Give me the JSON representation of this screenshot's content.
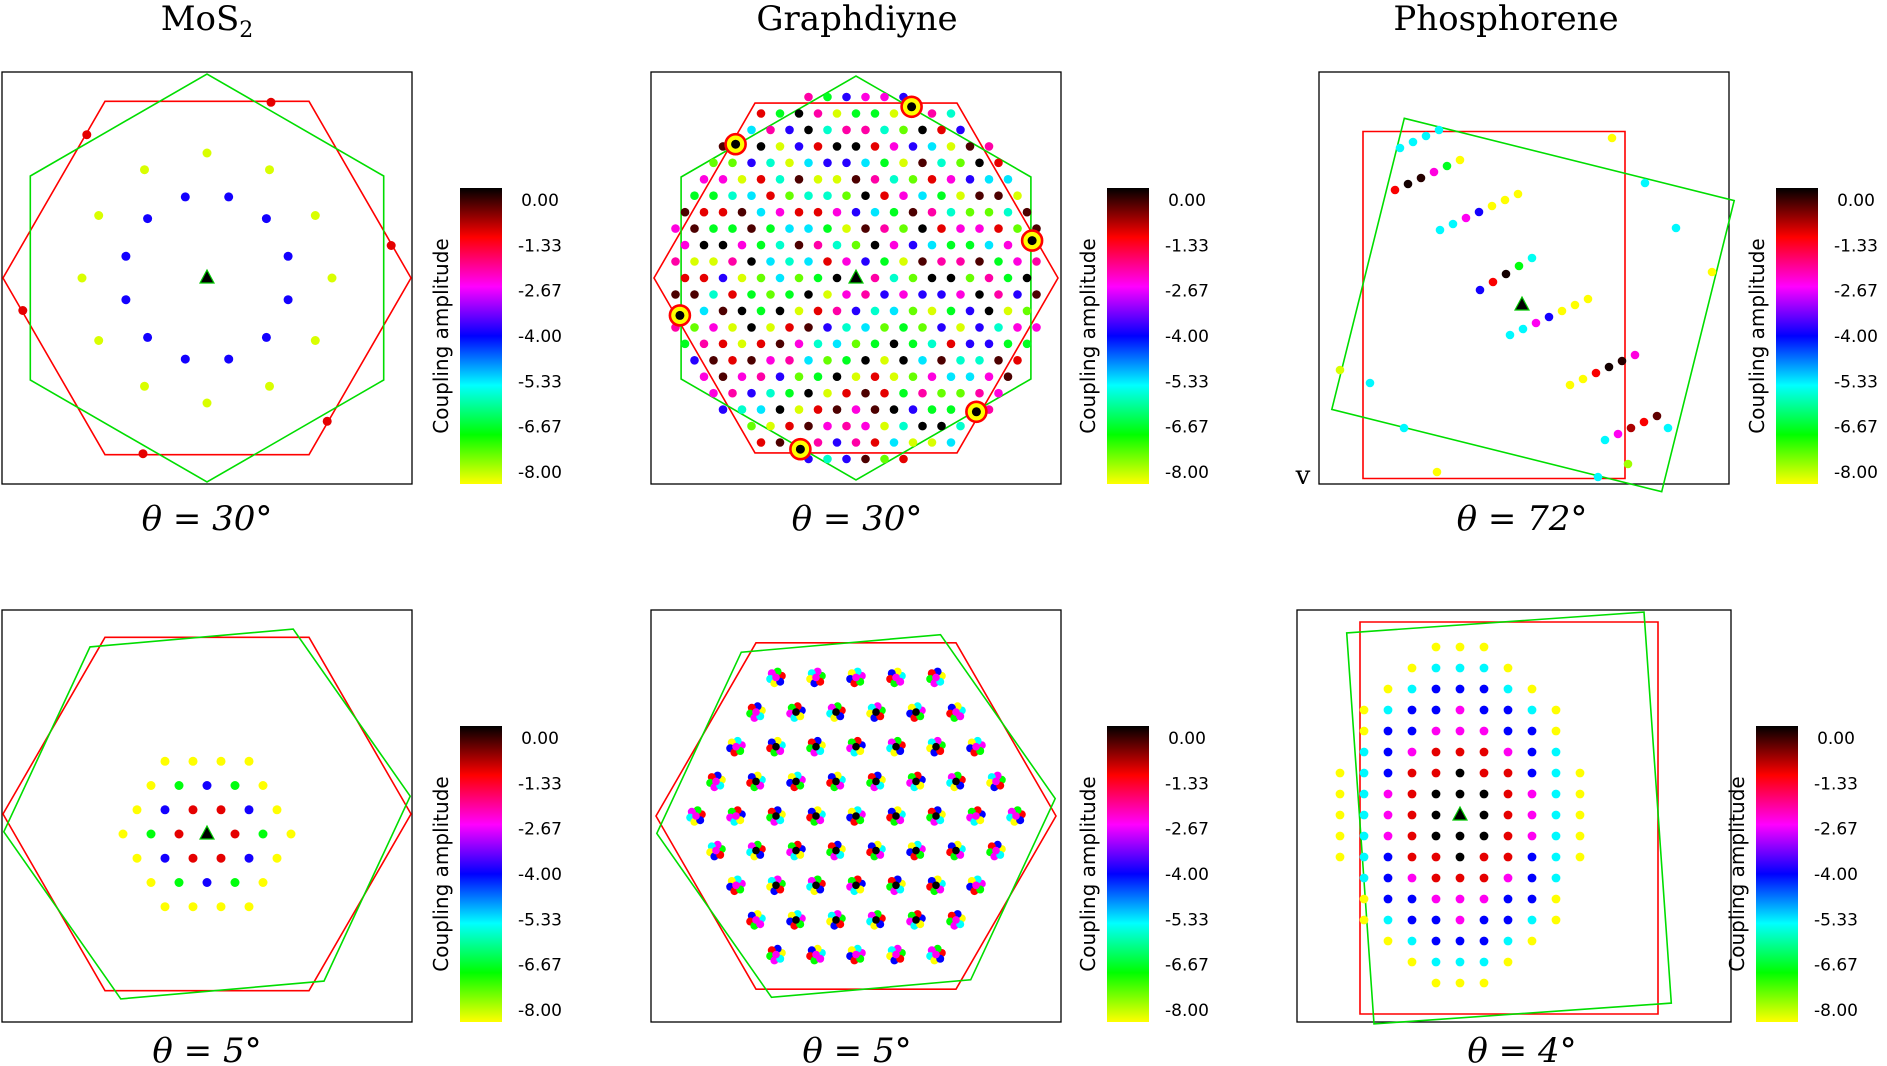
{
  "columns": [
    {
      "title_main": "MoS",
      "title_sub": "2"
    },
    {
      "title_main": "Graphdiyne",
      "title_sub": ""
    },
    {
      "title_main": "Phosphorene",
      "title_sub": ""
    }
  ],
  "colorbar": {
    "label": "Coupling amplitude",
    "ticks": [
      "0.00",
      "-1.33",
      "-2.67",
      "-4.00",
      "-5.33",
      "-6.67",
      "-8.00"
    ],
    "colors": [
      "#000000",
      "#ff0000",
      "#ff00ff",
      "#0000ff",
      "#00ffff",
      "#00ff00",
      "#ffff00"
    ]
  },
  "stray_char": "v",
  "chart_data": [
    {
      "type": "scatter",
      "material": "MoS2",
      "subtitle": "θ = 30°",
      "theta_deg": 30,
      "cutoff": 3,
      "lattice": "hexagonal",
      "moire_points": "circled",
      "grid": false,
      "colorbar": "right"
    },
    {
      "type": "scatter",
      "material": "Graphdiyne",
      "subtitle": "θ = 30°",
      "theta_deg": 30,
      "cutoff": 8,
      "lattice": "hexagonal",
      "moire_points": "circled",
      "grid": false,
      "colorbar": "right"
    },
    {
      "type": "scatter",
      "material": "Phosphorene",
      "subtitle": "θ = 72°",
      "theta_deg": 72,
      "lattice": "rectangular",
      "grid": false,
      "colorbar": "right"
    },
    {
      "type": "scatter",
      "material": "MoS2",
      "subtitle": "θ = 5°",
      "theta_deg": 5,
      "cutoff": 3,
      "lattice": "hexagonal",
      "grid": false,
      "colorbar": "right"
    },
    {
      "type": "scatter",
      "material": "Graphdiyne",
      "subtitle": "θ = 5°",
      "theta_deg": 5,
      "cutoff": 8,
      "lattice": "hexagonal",
      "grid": false,
      "colorbar": "right"
    },
    {
      "type": "scatter",
      "material": "Phosphorene",
      "subtitle": "θ = 4°",
      "theta_deg": 4,
      "lattice": "rectangular",
      "grid": false,
      "colorbar": "right"
    }
  ]
}
